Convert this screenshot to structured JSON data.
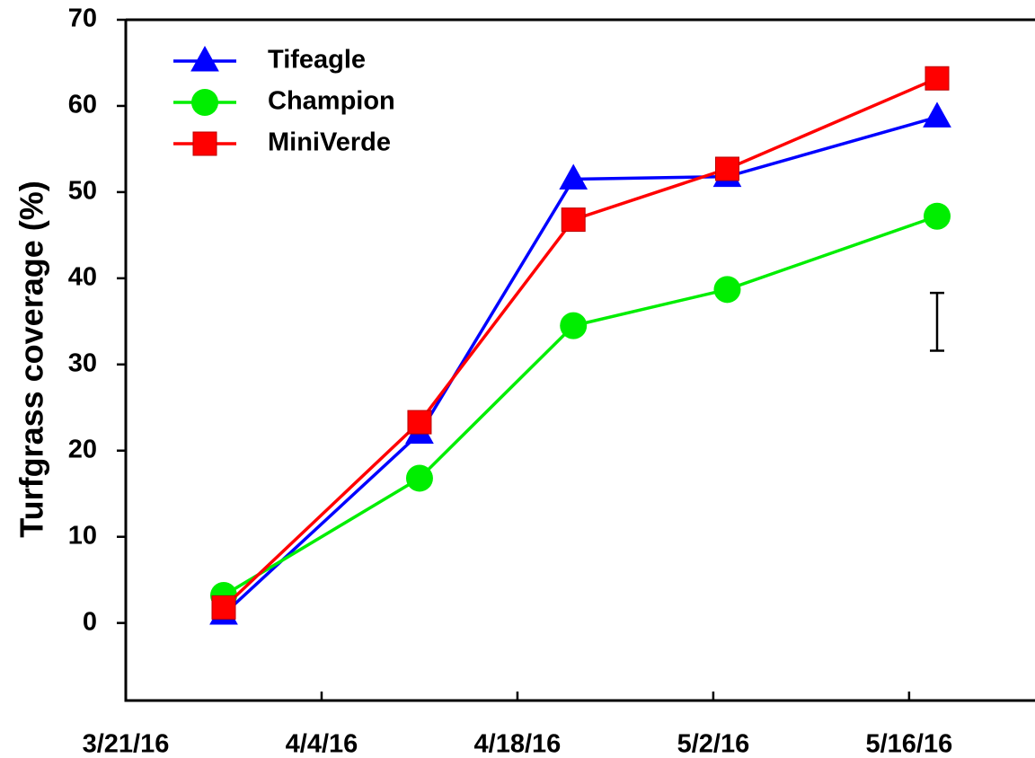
{
  "chart_data": {
    "type": "line",
    "y_label": "Turfgrass coverage (%)",
    "x": [
      "2016-03-28",
      "2016-04-11",
      "2016-04-22",
      "2016-05-03",
      "2016-05-18"
    ],
    "xlim": [
      "2016-03-21",
      "2016-05-25"
    ],
    "xticks": [
      {
        "value": "2016-03-21",
        "label": "3/21/16"
      },
      {
        "value": "2016-04-04",
        "label": "4/4/16"
      },
      {
        "value": "2016-04-18",
        "label": "4/18/16"
      },
      {
        "value": "2016-05-02",
        "label": "5/2/16"
      },
      {
        "value": "2016-05-16",
        "label": "5/16/16"
      }
    ],
    "ylim": [
      -9,
      70
    ],
    "yticks": [
      0,
      10,
      20,
      30,
      40,
      50,
      60,
      70
    ],
    "legend": "upper left",
    "series": [
      {
        "name": "Tifeagle",
        "color": "#0000ff",
        "marker": "triangle",
        "values": [
          1.0,
          22.0,
          51.5,
          51.8,
          58.7
        ]
      },
      {
        "name": "Champion",
        "color": "#00ee00",
        "marker": "circle",
        "values": [
          3.2,
          16.8,
          34.5,
          38.7,
          47.2
        ]
      },
      {
        "name": "MiniVerde",
        "color": "#ff0000",
        "marker": "square",
        "values": [
          1.8,
          23.3,
          46.8,
          52.7,
          63.2
        ]
      }
    ],
    "error_bar": {
      "x": "2016-05-18",
      "low": 31.6,
      "high": 38.3
    }
  }
}
